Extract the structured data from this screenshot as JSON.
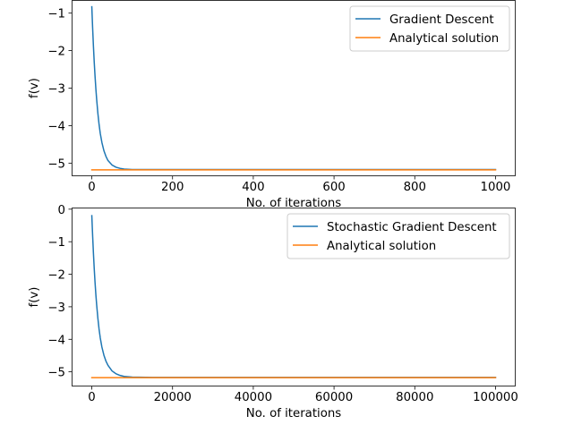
{
  "chart_data": [
    {
      "type": "line",
      "title": "",
      "xlabel": "No. of iterations",
      "ylabel": "f(v)",
      "xlim": [
        -50,
        1050
      ],
      "ylim": [
        -5.35,
        -0.65
      ],
      "xticks": [
        0,
        200,
        400,
        600,
        800,
        1000
      ],
      "yticks": [
        -1,
        -2,
        -3,
        -4,
        -5
      ],
      "grid": false,
      "legend_position": "top-right",
      "series": [
        {
          "name": "Gradient Descent",
          "color": "#1f77b4",
          "x": [
            0,
            2,
            4,
            6,
            8,
            10,
            12,
            15,
            18,
            21,
            25,
            30,
            35,
            40,
            50,
            60,
            70,
            80,
            100,
            150,
            200,
            300,
            500,
            700,
            1000
          ],
          "y": [
            -0.83,
            -1.39,
            -1.88,
            -2.31,
            -2.68,
            -3.01,
            -3.3,
            -3.67,
            -3.97,
            -4.21,
            -4.45,
            -4.67,
            -4.82,
            -4.93,
            -5.05,
            -5.11,
            -5.14,
            -5.16,
            -5.17,
            -5.17,
            -5.17,
            -5.17,
            -5.17,
            -5.17,
            -5.17
          ]
        },
        {
          "name": "Analytical solution",
          "color": "#ff7f0e",
          "x": [
            0,
            1000
          ],
          "y": [
            -5.18,
            -5.18
          ]
        }
      ]
    },
    {
      "type": "line",
      "title": "",
      "xlabel": "No. of iterations",
      "ylabel": "f(v)",
      "xlim": [
        -5000,
        105000
      ],
      "ylim": [
        -5.45,
        0.05
      ],
      "xticks": [
        0,
        20000,
        40000,
        60000,
        80000,
        100000
      ],
      "yticks": [
        0,
        -1,
        -2,
        -3,
        -4,
        -5
      ],
      "grid": false,
      "legend_position": "top-right",
      "series": [
        {
          "name": "Stochastic Gradient Descent",
          "color": "#1f77b4",
          "x": [
            0,
            200,
            400,
            600,
            800,
            1000,
            1200,
            1500,
            1800,
            2100,
            2500,
            3000,
            3500,
            4000,
            5000,
            6000,
            7000,
            8000,
            10000,
            15000,
            20000,
            30000,
            50000,
            70000,
            100000
          ],
          "y": [
            -0.2,
            -0.81,
            -1.35,
            -1.83,
            -2.25,
            -2.62,
            -2.94,
            -3.35,
            -3.69,
            -3.96,
            -4.24,
            -4.49,
            -4.67,
            -4.8,
            -4.97,
            -5.06,
            -5.11,
            -5.14,
            -5.16,
            -5.17,
            -5.17,
            -5.17,
            -5.17,
            -5.17,
            -5.17
          ]
        },
        {
          "name": "Analytical solution",
          "color": "#ff7f0e",
          "x": [
            0,
            100000
          ],
          "y": [
            -5.18,
            -5.18
          ]
        }
      ]
    }
  ]
}
